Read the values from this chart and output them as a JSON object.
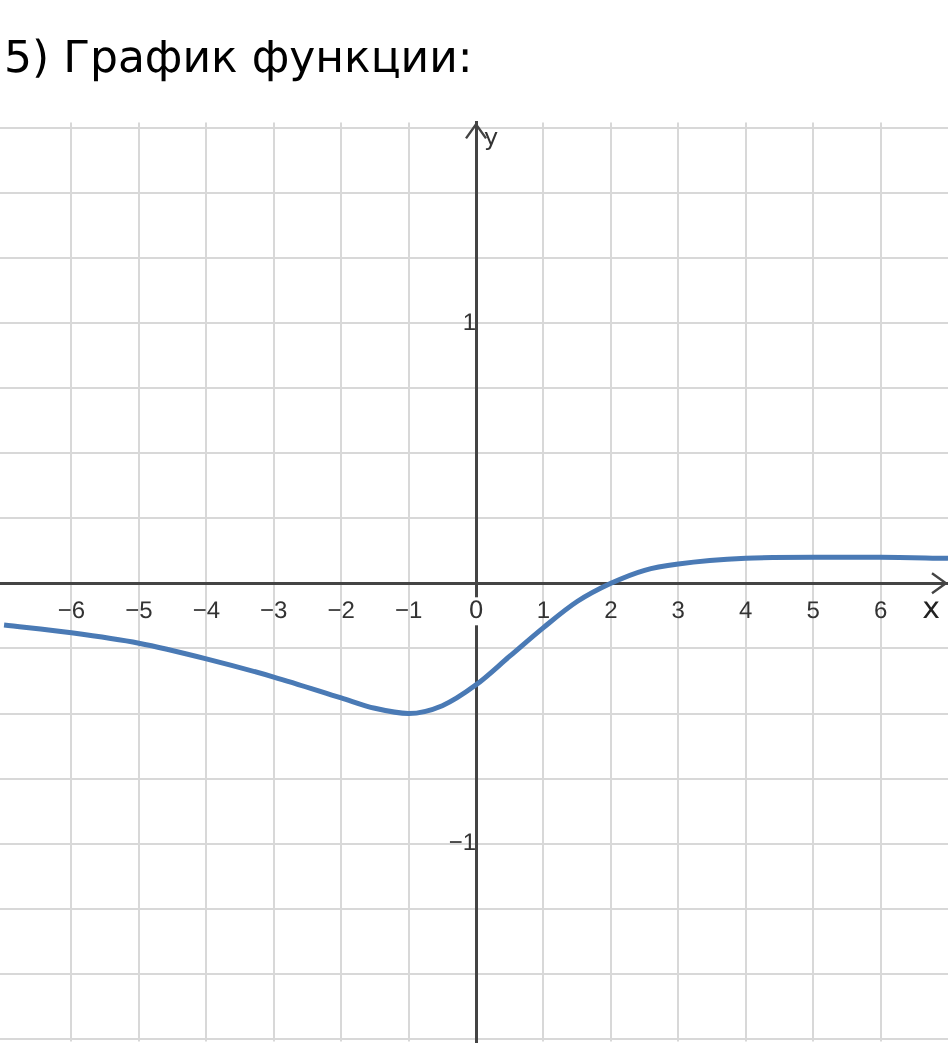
{
  "chart_data": {
    "type": "line",
    "title": "5) График функции:",
    "xlabel": "x",
    "ylabel": "y",
    "x": [
      -7,
      -6,
      -5,
      -4,
      -3,
      -2,
      -1.5,
      -1,
      -0.5,
      0,
      0.5,
      1,
      1.5,
      2,
      2.5,
      3,
      4,
      5,
      6,
      7
    ],
    "series": [
      {
        "color": "#4a7ab5",
        "values": [
          -0.16,
          -0.19,
          -0.23,
          -0.29,
          -0.36,
          -0.44,
          -0.48,
          -0.5,
          -0.47,
          -0.39,
          -0.28,
          -0.17,
          -0.07,
          0,
          0.05,
          0.074,
          0.096,
          0.1,
          0.1,
          0.096
        ]
      }
    ],
    "xlim": [
      -7.06,
      7
    ],
    "xticks": [
      -6,
      -5,
      -4,
      -3,
      -2,
      -1,
      0,
      1,
      2,
      3,
      4,
      5,
      6
    ],
    "ylim": [
      -1.76,
      1.77
    ],
    "yticks": [
      {
        "value": -1.75,
        "label": null
      },
      {
        "value": -1.5,
        "label": null
      },
      {
        "value": -1.25,
        "label": null
      },
      -1,
      {
        "value": -0.75,
        "label": null
      },
      {
        "value": -0.5,
        "label": null
      },
      {
        "value": -0.25,
        "label": null
      },
      {
        "value": 0,
        "label": null
      },
      {
        "value": 0.25,
        "label": null
      },
      {
        "value": 0.5,
        "label": null
      },
      {
        "value": 0.75,
        "label": null
      },
      1,
      {
        "value": 1.25,
        "label": null
      },
      {
        "value": 1.5,
        "label": null
      },
      {
        "value": 1.75,
        "label": null
      }
    ],
    "grid": true,
    "legend": false,
    "marker": "none",
    "line_style": "solid"
  }
}
